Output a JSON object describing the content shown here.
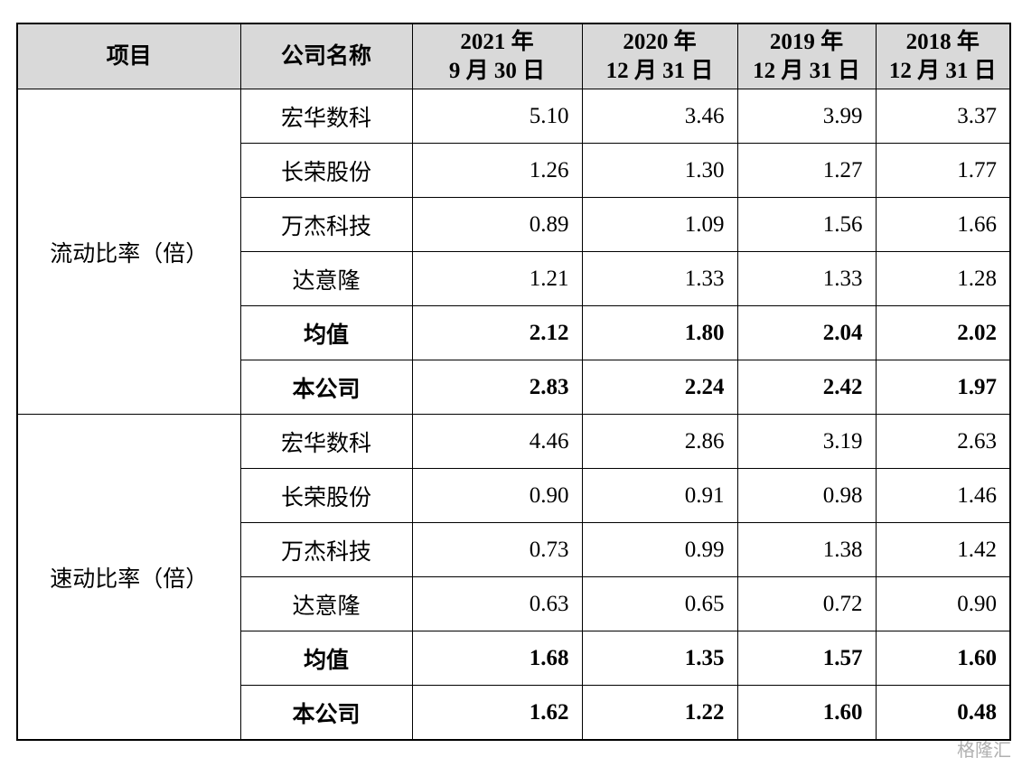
{
  "table": {
    "header": [
      [
        "项目"
      ],
      [
        "公司名称"
      ],
      [
        "2021 年",
        "9 月 30 日"
      ],
      [
        "2020 年",
        "12 月 31 日"
      ],
      [
        "2019 年",
        "12 月 31 日"
      ],
      [
        "2018 年",
        "12 月 31 日"
      ]
    ],
    "groups": [
      {
        "label": "流动比率（倍）",
        "rows": [
          {
            "company": "宏华数科",
            "values": [
              "5.10",
              "3.46",
              "3.99",
              "3.37"
            ]
          },
          {
            "company": "长荣股份",
            "values": [
              "1.26",
              "1.30",
              "1.27",
              "1.77"
            ]
          },
          {
            "company": "万杰科技",
            "values": [
              "0.89",
              "1.09",
              "1.56",
              "1.66"
            ]
          },
          {
            "company": "达意隆",
            "values": [
              "1.21",
              "1.33",
              "1.33",
              "1.28"
            ]
          },
          {
            "company": "均值",
            "values": [
              "2.12",
              "1.80",
              "2.04",
              "2.02"
            ]
          },
          {
            "company": "本公司",
            "values": [
              "2.83",
              "2.24",
              "2.42",
              "1.97"
            ]
          }
        ]
      },
      {
        "label": "速动比率（倍）",
        "rows": [
          {
            "company": "宏华数科",
            "values": [
              "4.46",
              "2.86",
              "3.19",
              "2.63"
            ]
          },
          {
            "company": "长荣股份",
            "values": [
              "0.90",
              "0.91",
              "0.98",
              "1.46"
            ]
          },
          {
            "company": "万杰科技",
            "values": [
              "0.73",
              "0.99",
              "1.38",
              "1.42"
            ]
          },
          {
            "company": "达意隆",
            "values": [
              "0.63",
              "0.65",
              "0.72",
              "0.90"
            ]
          },
          {
            "company": "均值",
            "values": [
              "1.68",
              "1.35",
              "1.57",
              "1.60"
            ]
          },
          {
            "company": "本公司",
            "values": [
              "1.62",
              "1.22",
              "1.60",
              "0.48"
            ]
          }
        ]
      }
    ]
  },
  "watermark": "格隆汇"
}
